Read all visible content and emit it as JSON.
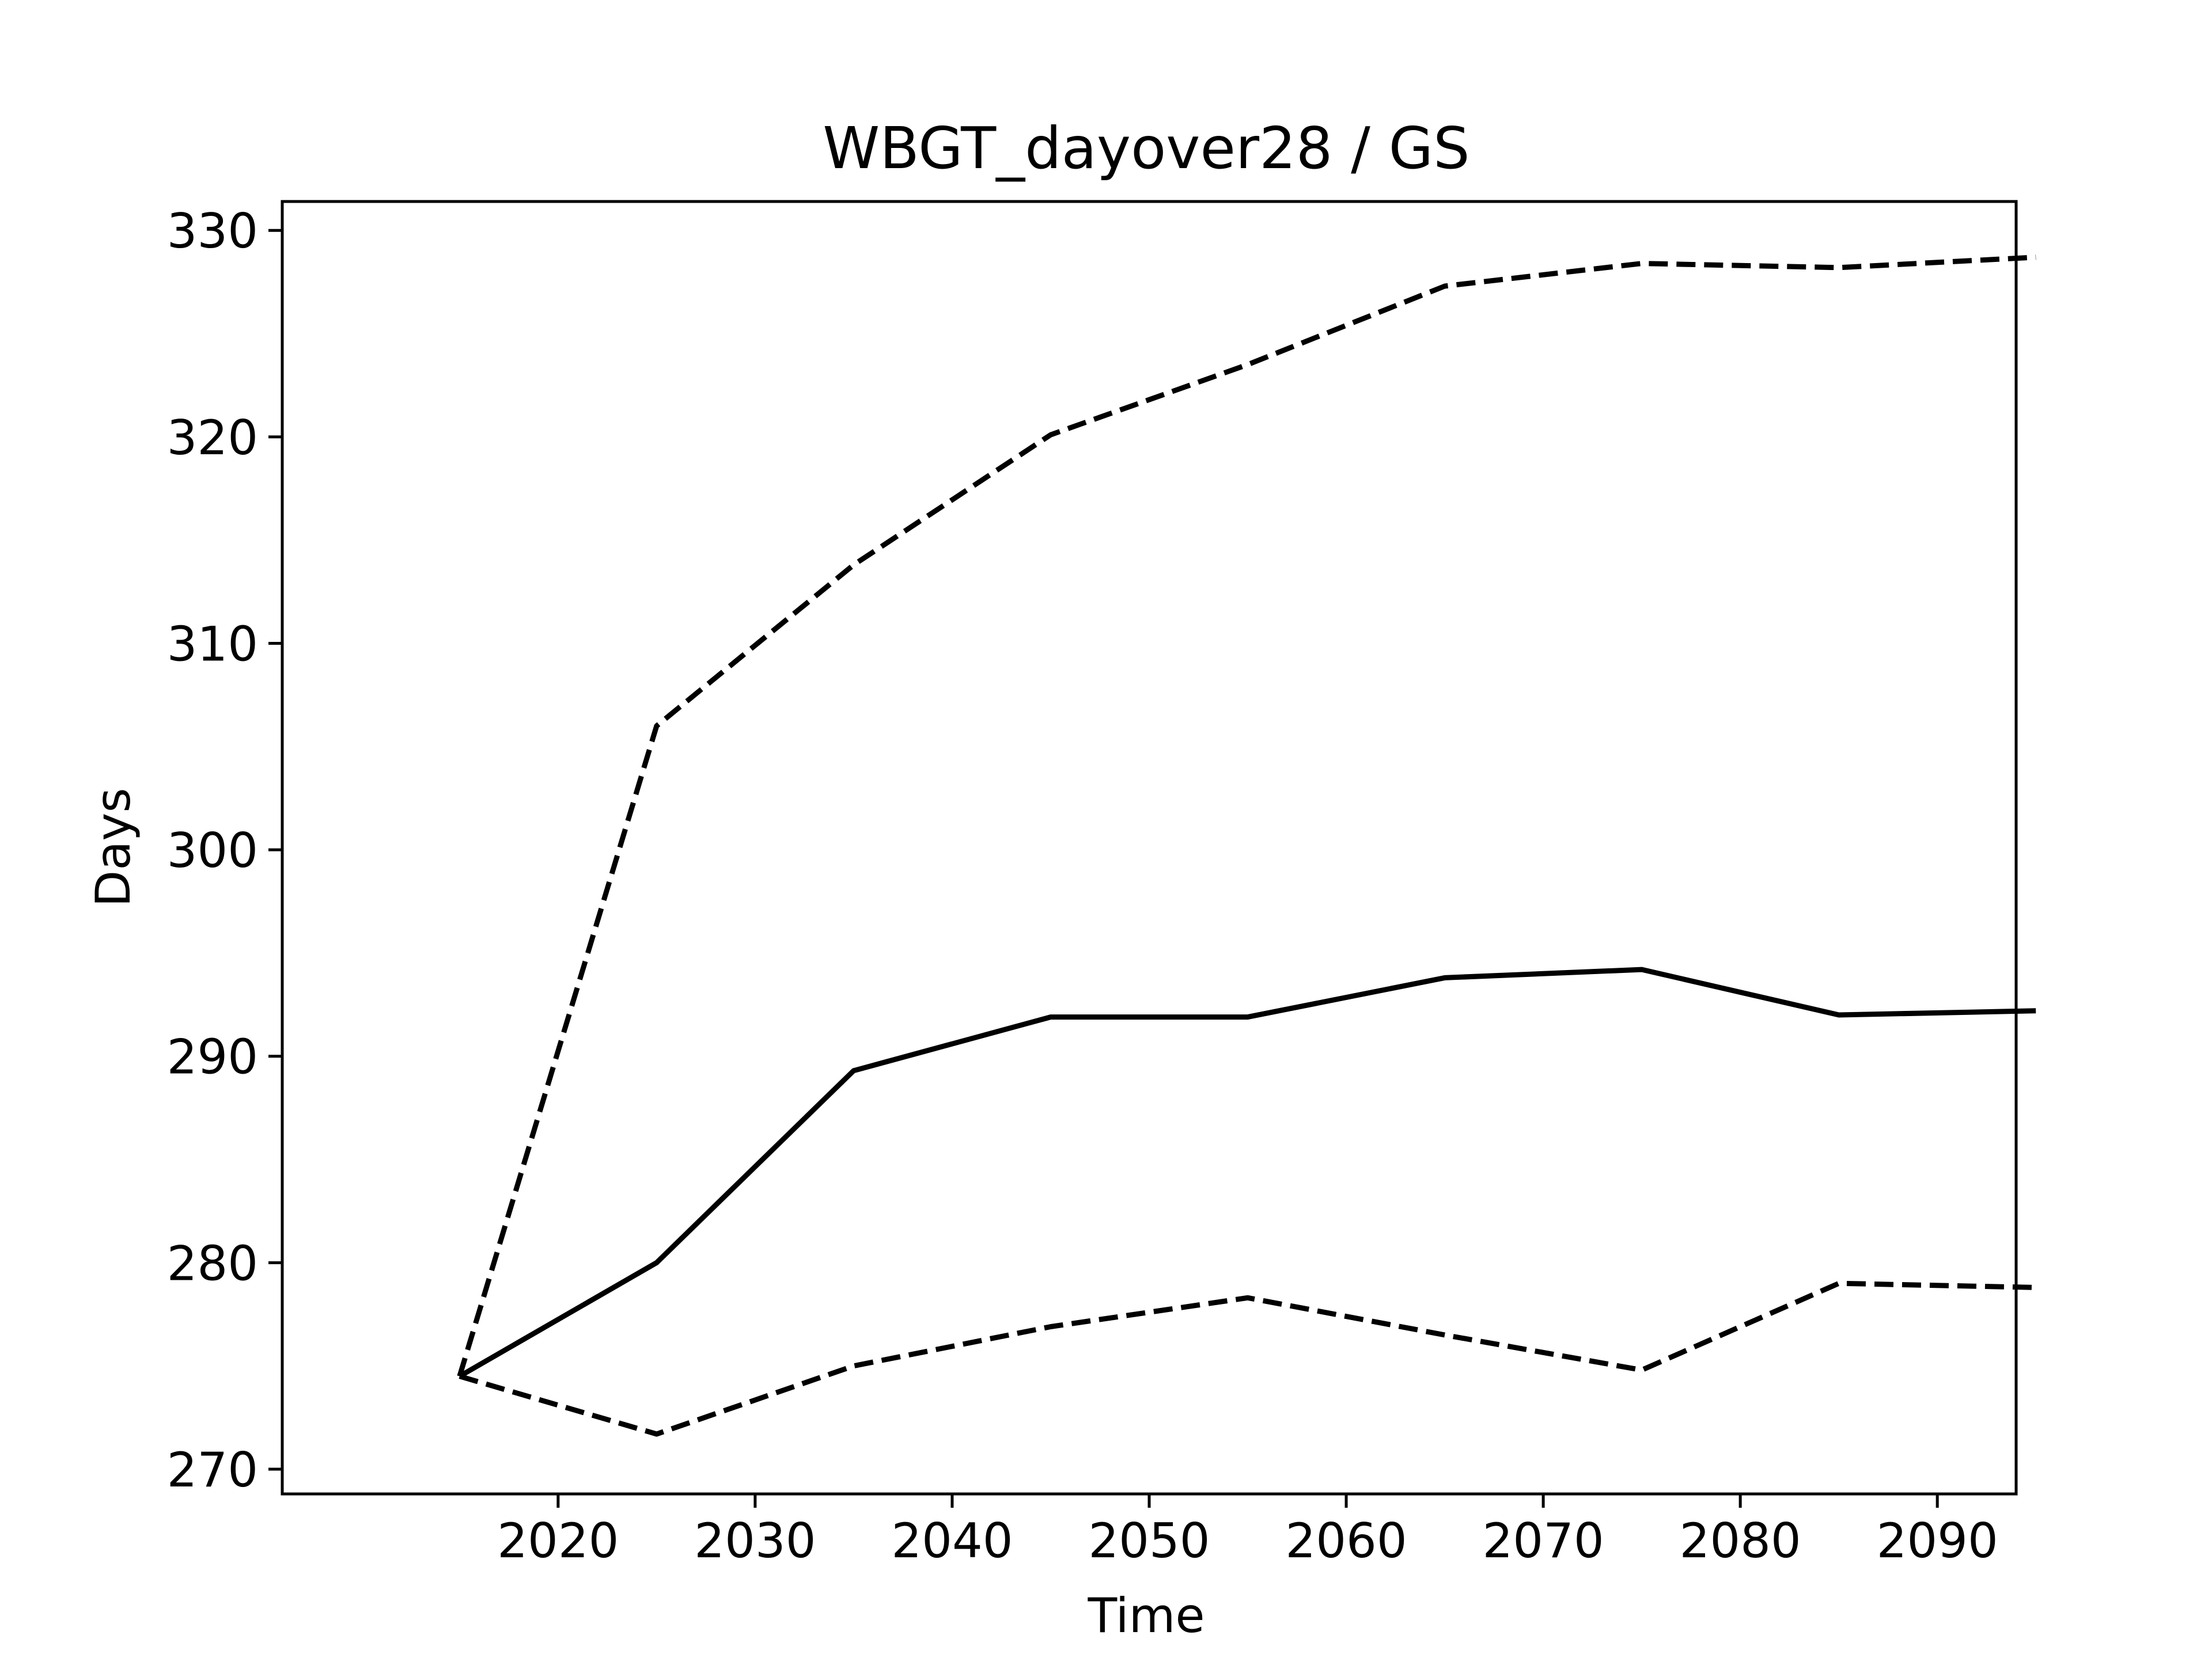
{
  "chart_data": {
    "type": "line",
    "title": "WBGT_dayover28 / GS",
    "xlabel": "Time",
    "ylabel": "Days",
    "x": [
      2015,
      2025,
      2035,
      2045,
      2055,
      2065,
      2075,
      2085,
      2095
    ],
    "xlim": [
      2006,
      2094
    ],
    "ylim": [
      268.8,
      331.4
    ],
    "xticks": [
      2020,
      2030,
      2040,
      2050,
      2060,
      2070,
      2080,
      2090
    ],
    "yticks": [
      270,
      280,
      290,
      300,
      310,
      320,
      330
    ],
    "grid": false,
    "series": [
      {
        "style": "dashed",
        "color": "#000000",
        "values": [
          274.5,
          306.0,
          313.8,
          320.1,
          323.5,
          327.3,
          328.4,
          328.2,
          328.7
        ]
      },
      {
        "style": "solid",
        "color": "#000000",
        "values": [
          274.5,
          280.0,
          289.3,
          291.9,
          291.9,
          293.8,
          294.2,
          292.0,
          292.2
        ]
      },
      {
        "style": "dashed",
        "color": "#000000",
        "values": [
          274.5,
          271.7,
          275.0,
          276.9,
          278.3,
          276.5,
          274.8,
          279.0,
          278.8
        ]
      }
    ]
  }
}
